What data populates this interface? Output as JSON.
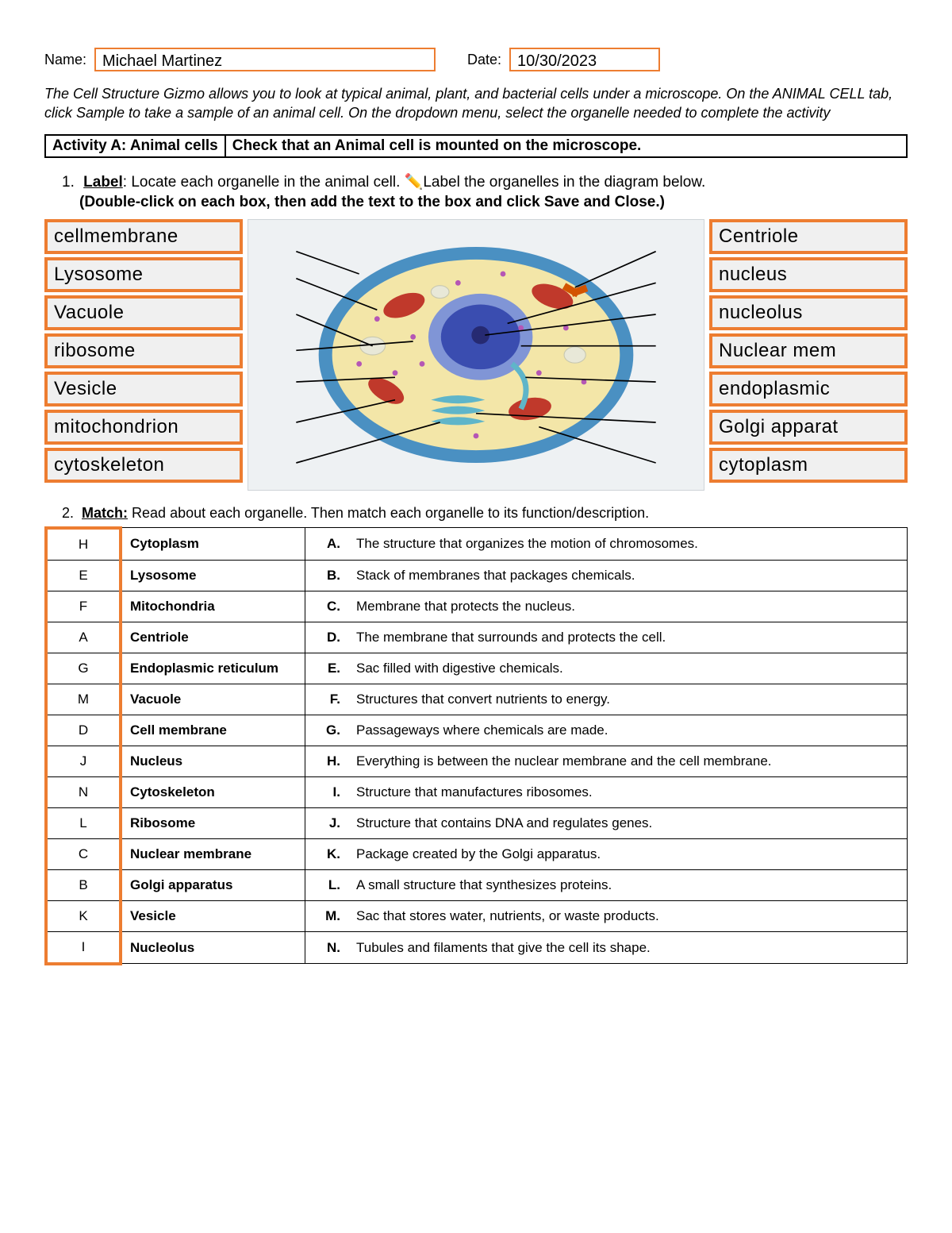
{
  "header": {
    "name_label": "Name:",
    "name_value": "Michael Martinez",
    "date_label": "Date:",
    "date_value": "10/30/2023"
  },
  "intro": "The Cell Structure Gizmo allows you to look at typical animal, plant, and bacterial cells under a microscope. On the ANIMAL CELL tab, click Sample to take a sample of an animal cell. On the dropdown menu, select the organelle needed to complete the activity",
  "activity": {
    "left": "Activity A:  Animal cells",
    "right": "Check that an Animal cell is mounted on the microscope."
  },
  "q1": {
    "num": "1.",
    "label_word": "Label",
    "line1_rest": ": Locate each organelle in the animal cell. ",
    "pencil": "✏️",
    "line1_tail": "Label the organelles in the diagram below.",
    "line2": "(Double-click on each box, then add the text to the box and click Save and Close.)"
  },
  "labels_left": [
    "cellmembrane",
    "Lysosome",
    "Vacuole",
    "ribosome",
    "Vesicle",
    "mitochondrion",
    "cytoskeleton"
  ],
  "labels_right": [
    "Centriole",
    "nucleus",
    "nucleolus",
    "Nuclear mem",
    "endoplasmic",
    "Golgi apparat",
    "cytoplasm"
  ],
  "cell_diagram": {
    "type": "biology-diagram",
    "background_color": "#eef1f3",
    "outer_membrane_color": "#4a90c2",
    "cytoplasm_color": "#f3e6a8",
    "nucleus_outer_color": "#8095d6",
    "nucleus_inner_color": "#3a4db0",
    "nucleolus_color": "#262a72",
    "mitochondria_color": "#c0392b",
    "golgi_color": "#5fb5c9",
    "vacuole_color": "#e8e8d8",
    "ribosome_color": "#b556b5",
    "centriole_color": "#d35400",
    "pointer_color": "#000000",
    "left_pointers_y": [
      0.08,
      0.18,
      0.32,
      0.46,
      0.58,
      0.74,
      0.9
    ],
    "right_pointers_y": [
      0.08,
      0.2,
      0.32,
      0.44,
      0.58,
      0.74,
      0.9
    ]
  },
  "q2": {
    "num": "2.",
    "label_word": "Match:",
    "rest": " Read about each organelle. Then match each organelle to its function/description."
  },
  "match_rows": [
    {
      "ans": "H",
      "org": "Cytoplasm",
      "letter": "A.",
      "desc": "The structure that organizes the motion of chromosomes."
    },
    {
      "ans": "E",
      "org": "Lysosome",
      "letter": "B.",
      "desc": "Stack of membranes that packages chemicals."
    },
    {
      "ans": "F",
      "org": "Mitochondria",
      "letter": "C.",
      "desc": "Membrane that protects the nucleus."
    },
    {
      "ans": "A",
      "org": "Centriole",
      "letter": "D.",
      "desc": "The membrane that surrounds and protects the cell."
    },
    {
      "ans": "G",
      "org": "Endoplasmic reticulum",
      "letter": "E.",
      "desc": "Sac filled with digestive chemicals."
    },
    {
      "ans": "M",
      "org": "Vacuole",
      "letter": "F.",
      "desc": "Structures that convert nutrients to energy."
    },
    {
      "ans": "D",
      "org": "Cell membrane",
      "letter": "G.",
      "desc": "Passageways where chemicals are made."
    },
    {
      "ans": "J",
      "org": "Nucleus",
      "letter": "H.",
      "desc": "Everything is between the nuclear membrane and the cell membrane."
    },
    {
      "ans": "N",
      "org": "Cytoskeleton",
      "letter": "I.",
      "desc": "Structure that manufactures ribosomes."
    },
    {
      "ans": "L",
      "org": "Ribosome",
      "letter": "J.",
      "desc": "Structure that contains DNA and regulates genes."
    },
    {
      "ans": "C",
      "org": "Nuclear membrane",
      "letter": "K.",
      "desc": "Package created by the Golgi apparatus."
    },
    {
      "ans": "B",
      "org": "Golgi apparatus",
      "letter": "L.",
      "desc": "A small structure that synthesizes proteins."
    },
    {
      "ans": "K",
      "org": "Vesicle",
      "letter": "M.",
      "desc": "Sac that stores water, nutrients, or waste products."
    },
    {
      "ans": "I",
      "org": "Nucleolus",
      "letter": "N.",
      "desc": "Tubules and filaments that give the cell its shape."
    }
  ],
  "colors": {
    "orange": "#ed7d31",
    "black": "#000000"
  }
}
